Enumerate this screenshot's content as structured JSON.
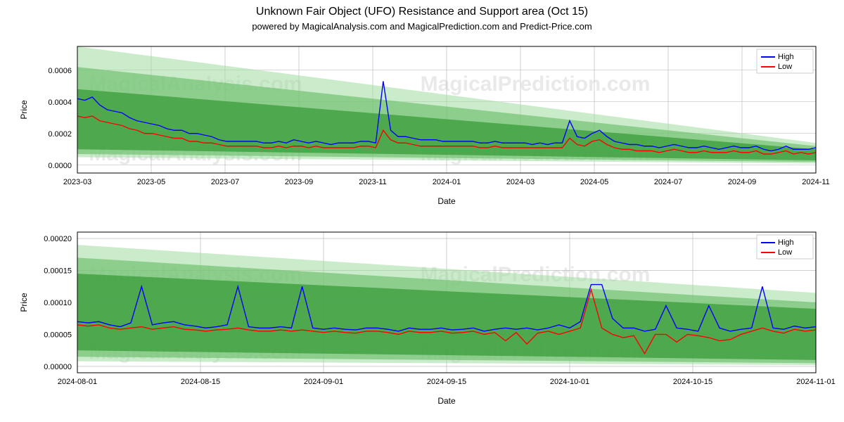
{
  "title": "Unknown Fair Object (UFO) Resistance and Support area (Oct 15)",
  "subtitle": "powered by MagicalAnalysis.com and MagicalPrediction.com and Predict-Price.com",
  "watermarks": [
    "MagicalAnalysis.com",
    "MagicalPrediction.com"
  ],
  "legend": {
    "high": "High",
    "low": "Low"
  },
  "colors": {
    "high_line": "#0000ff",
    "low_line": "#ff0000",
    "band_dark": "#3a9b3a",
    "band_mid": "#6bbf6b",
    "band_light": "#a0dca0",
    "grid": "#b0b0b0",
    "border": "#000000",
    "bg": "#ffffff",
    "watermark": "#d8d8d8"
  },
  "chart1": {
    "type": "line",
    "xlabel": "Date",
    "ylabel": "Price",
    "xlim_labels": [
      "2023-03",
      "2023-05",
      "2023-07",
      "2023-09",
      "2023-11",
      "2024-01",
      "2024-03",
      "2024-05",
      "2024-07",
      "2024-09",
      "2024-11"
    ],
    "ylim": [
      -5e-05,
      0.00075
    ],
    "yticks": [
      0.0,
      0.0002,
      0.0004,
      0.0006
    ],
    "ytick_labels": [
      "0.0000",
      "0.0002",
      "0.0004",
      "0.0006"
    ],
    "band_dark": {
      "y0_start": 0.0001,
      "y1_start": 0.00048,
      "y0_end": 3e-05,
      "y1_end": 0.0001
    },
    "band_mid": {
      "y0_start": 7e-05,
      "y1_start": 0.00062,
      "y0_end": 2e-05,
      "y1_end": 0.00012
    },
    "band_light": {
      "y0_start": 5e-05,
      "y1_start": 0.00075,
      "y0_end": 1e-05,
      "y1_end": 0.00014
    },
    "high": [
      0.00042,
      0.00041,
      0.00043,
      0.00038,
      0.00035,
      0.00034,
      0.00033,
      0.0003,
      0.00028,
      0.00027,
      0.00026,
      0.00025,
      0.00023,
      0.00022,
      0.00022,
      0.0002,
      0.0002,
      0.00019,
      0.00018,
      0.00016,
      0.00015,
      0.00015,
      0.00015,
      0.00015,
      0.00015,
      0.00014,
      0.00014,
      0.00015,
      0.00014,
      0.00016,
      0.00015,
      0.00014,
      0.00015,
      0.00014,
      0.00013,
      0.00014,
      0.00014,
      0.00014,
      0.00015,
      0.00015,
      0.00014,
      0.00053,
      0.00022,
      0.00018,
      0.00018,
      0.00017,
      0.00016,
      0.00016,
      0.00016,
      0.00015,
      0.00015,
      0.00015,
      0.00015,
      0.00015,
      0.00014,
      0.00014,
      0.00015,
      0.00014,
      0.00014,
      0.00014,
      0.00014,
      0.00013,
      0.00014,
      0.00013,
      0.00014,
      0.00014,
      0.00028,
      0.00018,
      0.00017,
      0.0002,
      0.00022,
      0.00018,
      0.00015,
      0.00014,
      0.00013,
      0.00013,
      0.00012,
      0.00012,
      0.00011,
      0.00012,
      0.00013,
      0.00012,
      0.00011,
      0.00011,
      0.00012,
      0.00011,
      0.0001,
      0.00011,
      0.00012,
      0.00011,
      0.00011,
      0.00012,
      0.0001,
      9e-05,
      0.0001,
      0.00012,
      0.0001,
      0.0001,
      0.0001,
      0.00011
    ],
    "low": [
      0.00031,
      0.0003,
      0.00031,
      0.00028,
      0.00027,
      0.00026,
      0.00025,
      0.00023,
      0.00022,
      0.0002,
      0.0002,
      0.00019,
      0.00018,
      0.00017,
      0.00017,
      0.00015,
      0.00015,
      0.00014,
      0.00014,
      0.00013,
      0.00012,
      0.00012,
      0.00012,
      0.00012,
      0.00012,
      0.00011,
      0.00011,
      0.00012,
      0.00011,
      0.00012,
      0.00012,
      0.00011,
      0.00012,
      0.00011,
      0.00011,
      0.00011,
      0.00011,
      0.00011,
      0.00012,
      0.00012,
      0.00011,
      0.00022,
      0.00016,
      0.00014,
      0.00014,
      0.00013,
      0.00012,
      0.00012,
      0.00012,
      0.00012,
      0.00012,
      0.00012,
      0.00012,
      0.00012,
      0.00011,
      0.00011,
      0.00012,
      0.00011,
      0.00011,
      0.00011,
      0.00011,
      0.00011,
      0.00011,
      0.00011,
      0.00011,
      0.00011,
      0.00017,
      0.00013,
      0.00012,
      0.00015,
      0.00016,
      0.00013,
      0.00011,
      0.0001,
      0.0001,
      9e-05,
      9e-05,
      9e-05,
      8e-05,
      9e-05,
      0.0001,
      9e-05,
      8e-05,
      8e-05,
      9e-05,
      8e-05,
      8e-05,
      8e-05,
      9e-05,
      8e-05,
      8e-05,
      9e-05,
      7e-05,
      7e-05,
      8e-05,
      9e-05,
      7e-05,
      8e-05,
      7e-05,
      8e-05
    ]
  },
  "chart2": {
    "type": "line",
    "xlabel": "Date",
    "ylabel": "Price",
    "xlim_labels": [
      "2024-08-01",
      "2024-08-15",
      "2024-09-01",
      "2024-09-15",
      "2024-10-01",
      "2024-10-15",
      "2024-11-01"
    ],
    "ylim": [
      -1e-05,
      0.00021
    ],
    "yticks": [
      0.0,
      5e-05,
      0.0001,
      0.00015,
      0.0002
    ],
    "ytick_labels": [
      "0.00000",
      "0.00005",
      "0.00010",
      "0.00015",
      "0.00020"
    ],
    "band_dark": {
      "y0_start": 2.5e-05,
      "y1_start": 0.000145,
      "y0_end": 1e-05,
      "y1_end": 9e-05
    },
    "band_mid": {
      "y0_start": 1.5e-05,
      "y1_start": 0.00017,
      "y0_end": 5e-06,
      "y1_end": 0.0001
    },
    "band_light": {
      "y0_start": 8e-06,
      "y1_start": 0.00019,
      "y0_end": 2e-06,
      "y1_end": 0.000115
    },
    "high": [
      7e-05,
      6.8e-05,
      7e-05,
      6.5e-05,
      6.2e-05,
      6.8e-05,
      0.000125,
      6.5e-05,
      6.8e-05,
      7e-05,
      6.5e-05,
      6.3e-05,
      6e-05,
      6.2e-05,
      6.5e-05,
      0.000125,
      6.2e-05,
      6e-05,
      6e-05,
      6.2e-05,
      6e-05,
      0.000125,
      6e-05,
      5.8e-05,
      6e-05,
      5.8e-05,
      5.7e-05,
      6e-05,
      6e-05,
      5.8e-05,
      5.5e-05,
      6e-05,
      5.8e-05,
      5.8e-05,
      6e-05,
      5.7e-05,
      5.8e-05,
      6e-05,
      5.5e-05,
      5.8e-05,
      6e-05,
      5.8e-05,
      6e-05,
      5.7e-05,
      6e-05,
      6.5e-05,
      6e-05,
      7e-05,
      0.000128,
      0.000128,
      7.5e-05,
      6e-05,
      6e-05,
      5.5e-05,
      5.8e-05,
      9.5e-05,
      6e-05,
      5.8e-05,
      5.5e-05,
      9.5e-05,
      6e-05,
      5.5e-05,
      5.8e-05,
      6e-05,
      0.000125,
      6e-05,
      5.8e-05,
      6.3e-05,
      6e-05,
      6.2e-05
    ],
    "low": [
      6.5e-05,
      6.3e-05,
      6.5e-05,
      6e-05,
      5.8e-05,
      6e-05,
      6.2e-05,
      5.8e-05,
      6e-05,
      6.2e-05,
      5.8e-05,
      5.7e-05,
      5.5e-05,
      5.7e-05,
      5.8e-05,
      6e-05,
      5.7e-05,
      5.5e-05,
      5.5e-05,
      5.7e-05,
      5.5e-05,
      5.7e-05,
      5.5e-05,
      5.3e-05,
      5.5e-05,
      5.3e-05,
      5.2e-05,
      5.5e-05,
      5.5e-05,
      5.3e-05,
      5e-05,
      5.5e-05,
      5.3e-05,
      5.3e-05,
      5.5e-05,
      5.2e-05,
      5.3e-05,
      5.5e-05,
      5e-05,
      5.3e-05,
      4e-05,
      5.3e-05,
      3.5e-05,
      5.2e-05,
      5.5e-05,
      5e-05,
      5.5e-05,
      6e-05,
      0.00012,
      6e-05,
      5e-05,
      4.5e-05,
      4.8e-05,
      2e-05,
      5e-05,
      5e-05,
      3.8e-05,
      5e-05,
      4.8e-05,
      4.5e-05,
      4e-05,
      4.2e-05,
      5e-05,
      5.5e-05,
      6e-05,
      5.5e-05,
      5.2e-05,
      5.8e-05,
      5.5e-05,
      5.7e-05
    ]
  }
}
